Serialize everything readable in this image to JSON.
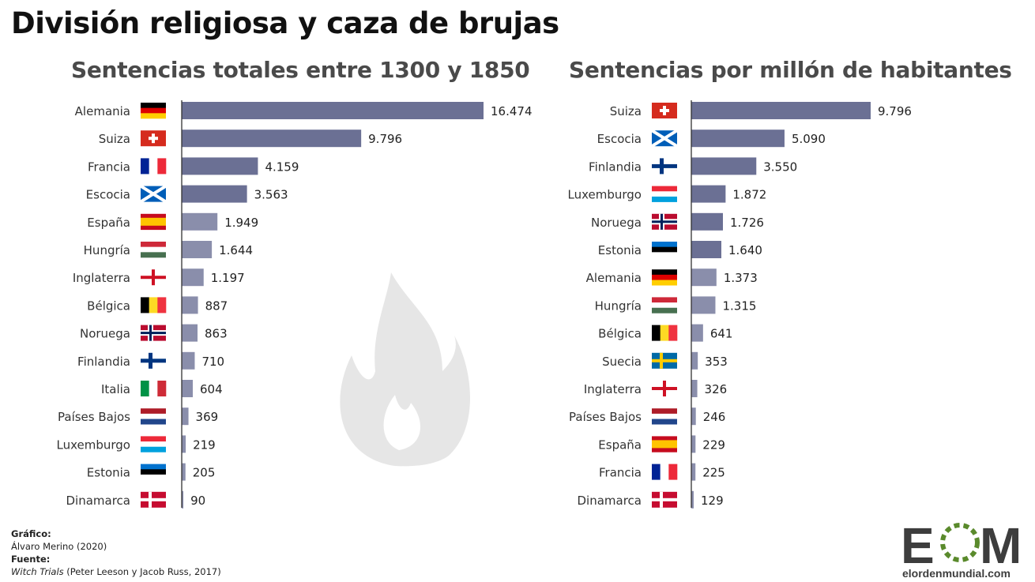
{
  "title": "División religiosa y caza de brujas",
  "colors": {
    "bar": "#6b7094",
    "bar_light": "#9a9db5",
    "fire": "#e6e6e6",
    "logo_dark": "#3d3d3d",
    "logo_green": "#5a8a2c"
  },
  "chart_data": [
    {
      "type": "bar",
      "orientation": "horizontal",
      "title": "Sentencias totales entre 1300 y 1850",
      "categories": [
        "Alemania",
        "Suiza",
        "Francia",
        "Escocia",
        "España",
        "Hungría",
        "Inglaterra",
        "Bélgica",
        "Noruega",
        "Finlandia",
        "Italia",
        "Países Bajos",
        "Luxemburgo",
        "Estonia",
        "Dinamarca"
      ],
      "values": [
        16474,
        9796,
        4159,
        3563,
        1949,
        1644,
        1197,
        887,
        863,
        710,
        604,
        369,
        219,
        205,
        90
      ],
      "labels": [
        "16.474",
        "9.796",
        "4.159",
        "3.563",
        "1.949",
        "1.644",
        "1.197",
        "887",
        "863",
        "710",
        "604",
        "369",
        "219",
        "205",
        "90"
      ],
      "xlim": [
        0,
        16474
      ]
    },
    {
      "type": "bar",
      "orientation": "horizontal",
      "title": "Sentencias por millón de habitantes",
      "categories": [
        "Suiza",
        "Escocia",
        "Finlandia",
        "Luxemburgo",
        "Noruega",
        "Estonia",
        "Alemania",
        "Hungría",
        "Bélgica",
        "Suecia",
        "Inglaterra",
        "Países Bajos",
        "España",
        "Francia",
        "Dinamarca"
      ],
      "values": [
        9796,
        5090,
        3550,
        1872,
        1726,
        1640,
        1373,
        1315,
        641,
        353,
        326,
        246,
        229,
        225,
        129
      ],
      "labels": [
        "9.796",
        "5.090",
        "3.550",
        "1.872",
        "1.726",
        "1.640",
        "1.373",
        "1.315",
        "641",
        "353",
        "326",
        "246",
        "229",
        "225",
        "129"
      ],
      "xlim": [
        0,
        9796
      ]
    }
  ],
  "footer": {
    "grafico_label": "Gráfico:",
    "grafico": "Álvaro Merino (2020)",
    "fuente_label": "Fuente:",
    "fuente_title": "Witch Trials",
    "fuente_rest": " (Peter Leeson y Jacob Russ, 2017)"
  },
  "logo": {
    "text": "EOM",
    "site": "elordenmundial.com"
  }
}
